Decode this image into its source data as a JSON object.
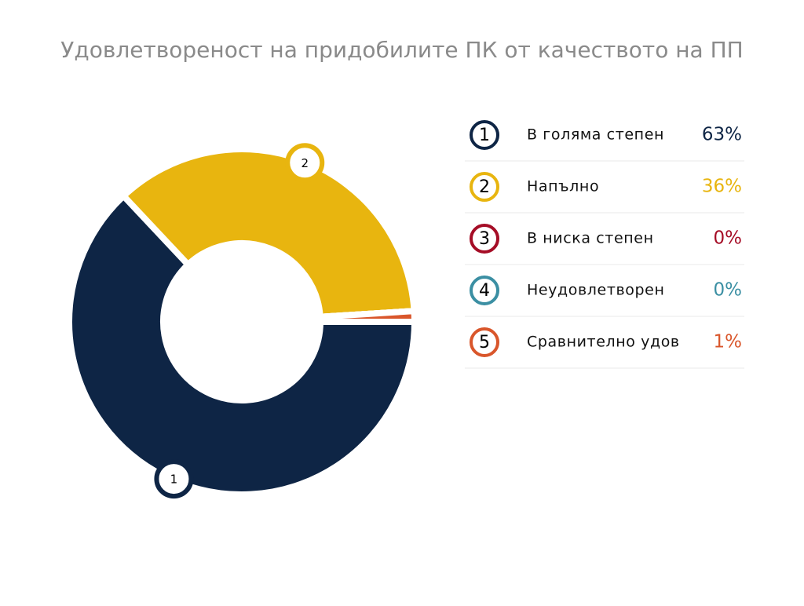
{
  "chart_data": {
    "type": "donut",
    "title": "Удовлетвореност на придобилите ПК от качеството на ПП",
    "categories": [
      "В голяма степен",
      "Напълно",
      "В ниска степен",
      "Неудовлетворен",
      "Сравнително удов"
    ],
    "values": [
      63,
      36,
      0,
      0,
      1
    ],
    "value_labels": [
      "63%",
      "36%",
      "0%",
      "0%",
      "1%"
    ],
    "slice_numbers": [
      "1",
      "2",
      "3",
      "4",
      "5"
    ],
    "colors": [
      "#0e2545",
      "#e8b50f",
      "#a50d26",
      "#3b8fa3",
      "#d9562b"
    ],
    "legend": "right"
  }
}
